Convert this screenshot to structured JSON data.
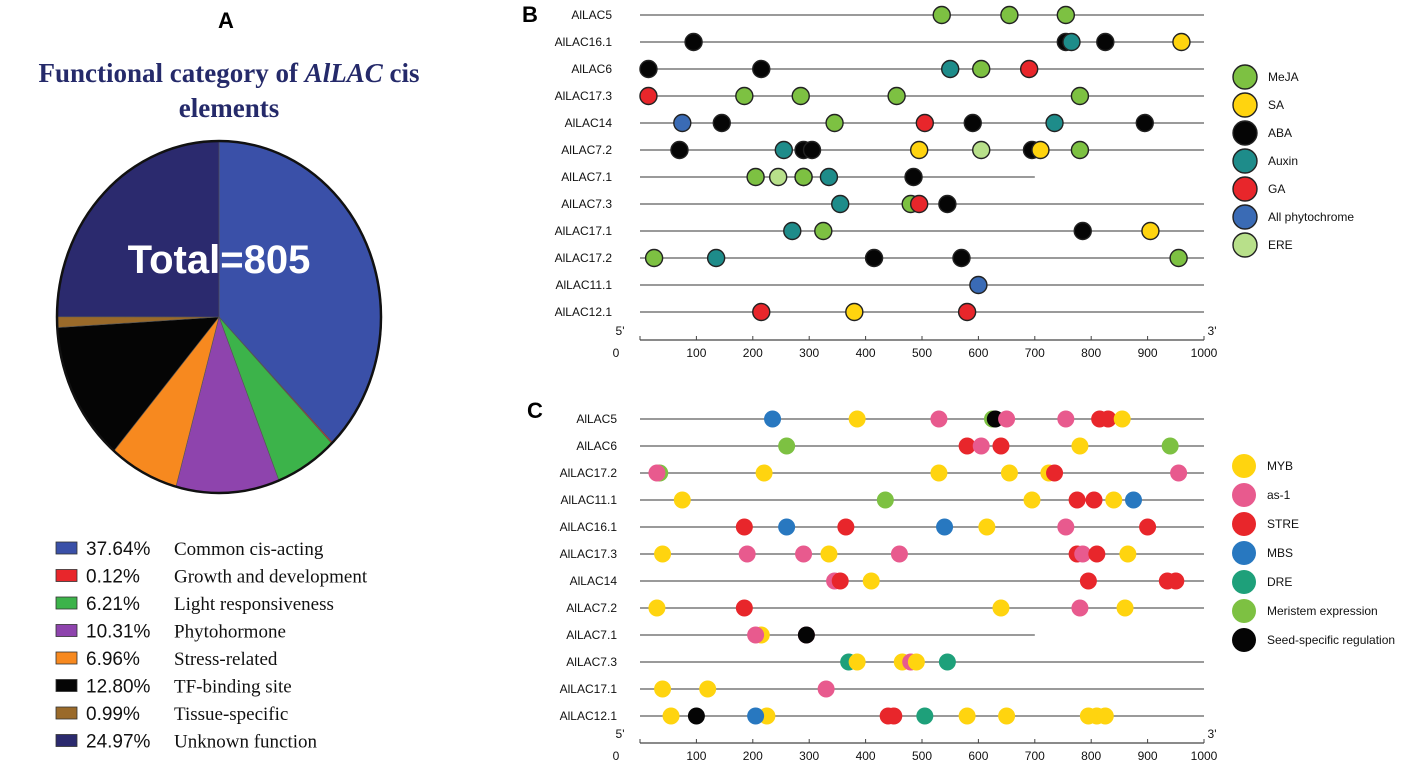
{
  "panel_a": {
    "letter": "A",
    "title_pre": "Functional category of ",
    "title_italic": "AlLAC",
    "title_post": " cis",
    "title_line2": "elements",
    "total_text": "Total=805",
    "legend_pct_labels": [
      "37.64%",
      "0.12%",
      "6.21%",
      "10.31%",
      "6.96%",
      "12.80%",
      "0.99%",
      "24.97%"
    ],
    "legend_name_labels": [
      "Common cis-acting",
      "Growth and development",
      "Light responsiveness",
      "Phytohormone",
      "Stress-related",
      "TF-binding site",
      "Tissue-specific",
      "Unknown function"
    ]
  },
  "chart_data": [
    {
      "panel": "A",
      "type": "pie",
      "title": "Functional category of AlLAC cis elements",
      "total": 805,
      "slices": [
        {
          "label": "Common cis-acting",
          "percent": 37.64,
          "color": "#3a50a8"
        },
        {
          "label": "Growth and development",
          "percent": 0.12,
          "color": "#e8262b"
        },
        {
          "label": "Light responsiveness",
          "percent": 6.21,
          "color": "#3cb34a"
        },
        {
          "label": "Phytohormone",
          "percent": 10.31,
          "color": "#8e44ad"
        },
        {
          "label": "Stress-related",
          "percent": 6.96,
          "color": "#f7891f"
        },
        {
          "label": "TF-binding site",
          "percent": 12.8,
          "color": "#050505"
        },
        {
          "label": "Tissue-specific",
          "percent": 0.99,
          "color": "#9a6a2a"
        },
        {
          "label": "Unknown function",
          "percent": 24.97,
          "color": "#2b2a6e"
        }
      ]
    },
    {
      "panel": "B",
      "type": "scatter",
      "letter": "B",
      "xlim": [
        0,
        1000
      ],
      "ticks": [
        0,
        100,
        200,
        300,
        400,
        500,
        600,
        700,
        800,
        900,
        1000
      ],
      "five_prime": "5'",
      "three_prime": "3'",
      "colors": {
        "MeJA": "#7dc142",
        "SA": "#ffd40f",
        "ABA": "#050505",
        "Auxin": "#1e8c8a",
        "GA": "#e8262b",
        "All phytochrome": "#3a6bb5",
        "ERE": "#b8e08a"
      },
      "legend": [
        "MeJA",
        "SA",
        "ABA",
        "Auxin",
        "GA",
        "All phytochrome",
        "ERE"
      ],
      "genes": [
        {
          "name": "AlLAC5",
          "length": 1000,
          "elements": [
            [
              535,
              "MeJA"
            ],
            [
              655,
              "MeJA"
            ],
            [
              755,
              "MeJA"
            ]
          ]
        },
        {
          "name": "AlLAC16.1",
          "length": 1000,
          "elements": [
            [
              95,
              "ABA"
            ],
            [
              755,
              "ABA"
            ],
            [
              765,
              "Auxin"
            ],
            [
              825,
              "ABA"
            ],
            [
              960,
              "SA"
            ]
          ]
        },
        {
          "name": "AlLAC6",
          "length": 1000,
          "elements": [
            [
              15,
              "ABA"
            ],
            [
              215,
              "ABA"
            ],
            [
              550,
              "Auxin"
            ],
            [
              605,
              "MeJA"
            ],
            [
              690,
              "GA"
            ]
          ]
        },
        {
          "name": "AlLAC17.3",
          "length": 1000,
          "elements": [
            [
              15,
              "GA"
            ],
            [
              185,
              "MeJA"
            ],
            [
              285,
              "MeJA"
            ],
            [
              455,
              "MeJA"
            ],
            [
              780,
              "MeJA"
            ]
          ]
        },
        {
          "name": "AlLAC14",
          "length": 1000,
          "elements": [
            [
              75,
              "All phytochrome"
            ],
            [
              145,
              "ABA"
            ],
            [
              345,
              "MeJA"
            ],
            [
              505,
              "GA"
            ],
            [
              590,
              "ABA"
            ],
            [
              735,
              "Auxin"
            ],
            [
              895,
              "ABA"
            ]
          ]
        },
        {
          "name": "AlLAC7.2",
          "length": 1000,
          "elements": [
            [
              70,
              "ABA"
            ],
            [
              255,
              "Auxin"
            ],
            [
              290,
              "ABA"
            ],
            [
              305,
              "ABA"
            ],
            [
              495,
              "SA"
            ],
            [
              605,
              "ERE"
            ],
            [
              695,
              "ABA"
            ],
            [
              710,
              "SA"
            ],
            [
              780,
              "MeJA"
            ]
          ]
        },
        {
          "name": "AlLAC7.1",
          "length": 700,
          "elements": [
            [
              205,
              "MeJA"
            ],
            [
              245,
              "ERE"
            ],
            [
              290,
              "ABA"
            ],
            [
              290,
              "MeJA"
            ],
            [
              335,
              "Auxin"
            ],
            [
              485,
              "ABA"
            ]
          ]
        },
        {
          "name": "AlLAC7.3",
          "length": 1000,
          "elements": [
            [
              355,
              "Auxin"
            ],
            [
              480,
              "MeJA"
            ],
            [
              495,
              "GA"
            ],
            [
              545,
              "ABA"
            ]
          ]
        },
        {
          "name": "AlLAC17.1",
          "length": 1000,
          "elements": [
            [
              270,
              "Auxin"
            ],
            [
              325,
              "MeJA"
            ],
            [
              785,
              "ABA"
            ],
            [
              905,
              "SA"
            ]
          ]
        },
        {
          "name": "AlLAC17.2",
          "length": 1000,
          "elements": [
            [
              25,
              "MeJA"
            ],
            [
              135,
              "Auxin"
            ],
            [
              415,
              "ABA"
            ],
            [
              570,
              "ABA"
            ],
            [
              955,
              "MeJA"
            ]
          ]
        },
        {
          "name": "AlLAC11.1",
          "length": 1000,
          "elements": [
            [
              600,
              "All phytochrome"
            ]
          ]
        },
        {
          "name": "AlLAC12.1",
          "length": 1000,
          "elements": [
            [
              215,
              "GA"
            ],
            [
              380,
              "SA"
            ],
            [
              580,
              "GA"
            ]
          ]
        }
      ]
    },
    {
      "panel": "C",
      "type": "scatter",
      "letter": "C",
      "xlim": [
        0,
        1000
      ],
      "ticks": [
        0,
        100,
        200,
        300,
        400,
        500,
        600,
        700,
        800,
        900,
        1000
      ],
      "five_prime": "5'",
      "three_prime": "3'",
      "colors": {
        "MYB": "#ffd40f",
        "as-1": "#e85a8e",
        "STRE": "#e8262b",
        "MBS": "#2878c0",
        "DRE": "#1ea07a",
        "Meristem expression": "#7dc142",
        "Seed-specific regulation": "#050505"
      },
      "legend": [
        "MYB",
        "as-1",
        "STRE",
        "MBS",
        "DRE",
        "Meristem expression",
        "Seed-specific regulation"
      ],
      "genes": [
        {
          "name": "AlLAC5",
          "length": 1000,
          "elements": [
            [
              235,
              "MBS"
            ],
            [
              385,
              "MYB"
            ],
            [
              530,
              "as-1"
            ],
            [
              625,
              "Meristem expression"
            ],
            [
              630,
              "Seed-specific regulation"
            ],
            [
              650,
              "as-1"
            ],
            [
              755,
              "as-1"
            ],
            [
              815,
              "STRE"
            ],
            [
              830,
              "STRE"
            ],
            [
              855,
              "MYB"
            ]
          ]
        },
        {
          "name": "AlLAC6",
          "length": 1000,
          "elements": [
            [
              260,
              "Meristem expression"
            ],
            [
              580,
              "STRE"
            ],
            [
              605,
              "as-1"
            ],
            [
              640,
              "STRE"
            ],
            [
              780,
              "MYB"
            ],
            [
              940,
              "Meristem expression"
            ]
          ]
        },
        {
          "name": "AlLAC17.2",
          "length": 1000,
          "elements": [
            [
              35,
              "Meristem expression"
            ],
            [
              30,
              "as-1"
            ],
            [
              220,
              "MYB"
            ],
            [
              530,
              "MYB"
            ],
            [
              655,
              "MYB"
            ],
            [
              725,
              "MYB"
            ],
            [
              735,
              "STRE"
            ],
            [
              955,
              "as-1"
            ]
          ]
        },
        {
          "name": "AlLAC11.1",
          "length": 1000,
          "elements": [
            [
              75,
              "MYB"
            ],
            [
              435,
              "Meristem expression"
            ],
            [
              695,
              "MYB"
            ],
            [
              775,
              "STRE"
            ],
            [
              805,
              "STRE"
            ],
            [
              840,
              "MYB"
            ],
            [
              875,
              "MBS"
            ]
          ]
        },
        {
          "name": "AlLAC16.1",
          "length": 1000,
          "elements": [
            [
              185,
              "STRE"
            ],
            [
              260,
              "MBS"
            ],
            [
              365,
              "STRE"
            ],
            [
              540,
              "MBS"
            ],
            [
              615,
              "MYB"
            ],
            [
              755,
              "as-1"
            ],
            [
              900,
              "STRE"
            ]
          ]
        },
        {
          "name": "AlLAC17.3",
          "length": 1000,
          "elements": [
            [
              40,
              "MYB"
            ],
            [
              190,
              "as-1"
            ],
            [
              290,
              "as-1"
            ],
            [
              335,
              "MYB"
            ],
            [
              460,
              "as-1"
            ],
            [
              775,
              "STRE"
            ],
            [
              785,
              "as-1"
            ],
            [
              810,
              "STRE"
            ],
            [
              865,
              "MYB"
            ]
          ]
        },
        {
          "name": "AlLAC14",
          "length": 1000,
          "elements": [
            [
              345,
              "as-1"
            ],
            [
              355,
              "STRE"
            ],
            [
              410,
              "MYB"
            ],
            [
              795,
              "STRE"
            ],
            [
              935,
              "STRE"
            ],
            [
              950,
              "STRE"
            ]
          ]
        },
        {
          "name": "AlLAC7.2",
          "length": 1000,
          "elements": [
            [
              30,
              "MYB"
            ],
            [
              185,
              "STRE"
            ],
            [
              640,
              "MYB"
            ],
            [
              780,
              "as-1"
            ],
            [
              860,
              "MYB"
            ]
          ]
        },
        {
          "name": "AlLAC7.1",
          "length": 700,
          "elements": [
            [
              215,
              "MYB"
            ],
            [
              205,
              "as-1"
            ],
            [
              295,
              "as-1"
            ],
            [
              295,
              "Seed-specific regulation"
            ]
          ]
        },
        {
          "name": "AlLAC7.3",
          "length": 1000,
          "elements": [
            [
              370,
              "DRE"
            ],
            [
              385,
              "MYB"
            ],
            [
              465,
              "MYB"
            ],
            [
              480,
              "as-1"
            ],
            [
              490,
              "MYB"
            ],
            [
              545,
              "DRE"
            ]
          ]
        },
        {
          "name": "AlLAC17.1",
          "length": 1000,
          "elements": [
            [
              40,
              "MYB"
            ],
            [
              120,
              "MYB"
            ],
            [
              330,
              "as-1"
            ]
          ]
        },
        {
          "name": "AlLAC12.1",
          "length": 1000,
          "elements": [
            [
              55,
              "MYB"
            ],
            [
              100,
              "Seed-specific regulation"
            ],
            [
              225,
              "MYB"
            ],
            [
              205,
              "MBS"
            ],
            [
              440,
              "STRE"
            ],
            [
              450,
              "STRE"
            ],
            [
              505,
              "DRE"
            ],
            [
              580,
              "MYB"
            ],
            [
              650,
              "MYB"
            ],
            [
              795,
              "MYB"
            ],
            [
              810,
              "MYB"
            ],
            [
              825,
              "MYB"
            ]
          ]
        }
      ]
    }
  ]
}
